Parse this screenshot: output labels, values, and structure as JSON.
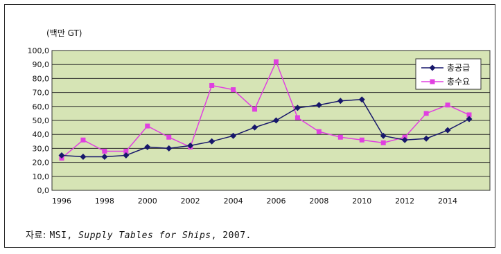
{
  "chart_data": {
    "type": "line",
    "unit_label": "(백만 GT)",
    "x": [
      1996,
      1997,
      1998,
      1999,
      2000,
      2001,
      2002,
      2003,
      2004,
      2005,
      2006,
      2007,
      2008,
      2009,
      2010,
      2011,
      2012,
      2013,
      2014,
      2015
    ],
    "x_ticks": [
      "1996",
      "1998",
      "2000",
      "2002",
      "2004",
      "2006",
      "2008",
      "2010",
      "2012",
      "2014"
    ],
    "y_ticks": [
      "0,0",
      "10,0",
      "20,0",
      "30,0",
      "40,0",
      "50,0",
      "60,0",
      "70,0",
      "80,0",
      "90,0",
      "100,0"
    ],
    "ylim": [
      0,
      100
    ],
    "grid": true,
    "legend_position": "top-right",
    "plot_background": "#d6e4b5",
    "series": [
      {
        "name": "총공급",
        "color": "#17176b",
        "marker": "diamond",
        "values": [
          25,
          24,
          24,
          25,
          31,
          30,
          32,
          35,
          39,
          45,
          50,
          59,
          61,
          64,
          65,
          39,
          36,
          37,
          43,
          51
        ]
      },
      {
        "name": "총수요",
        "color": "#e040e0",
        "marker": "square",
        "values": [
          23,
          36,
          28,
          28,
          46,
          38,
          31,
          75,
          72,
          58,
          92,
          52,
          42,
          38,
          36,
          34,
          38,
          55,
          61,
          54
        ]
      }
    ]
  },
  "source": {
    "prefix": "자료: ",
    "author": "MSI, ",
    "title": "Supply Tables for Ships",
    "suffix": ", 2007."
  }
}
